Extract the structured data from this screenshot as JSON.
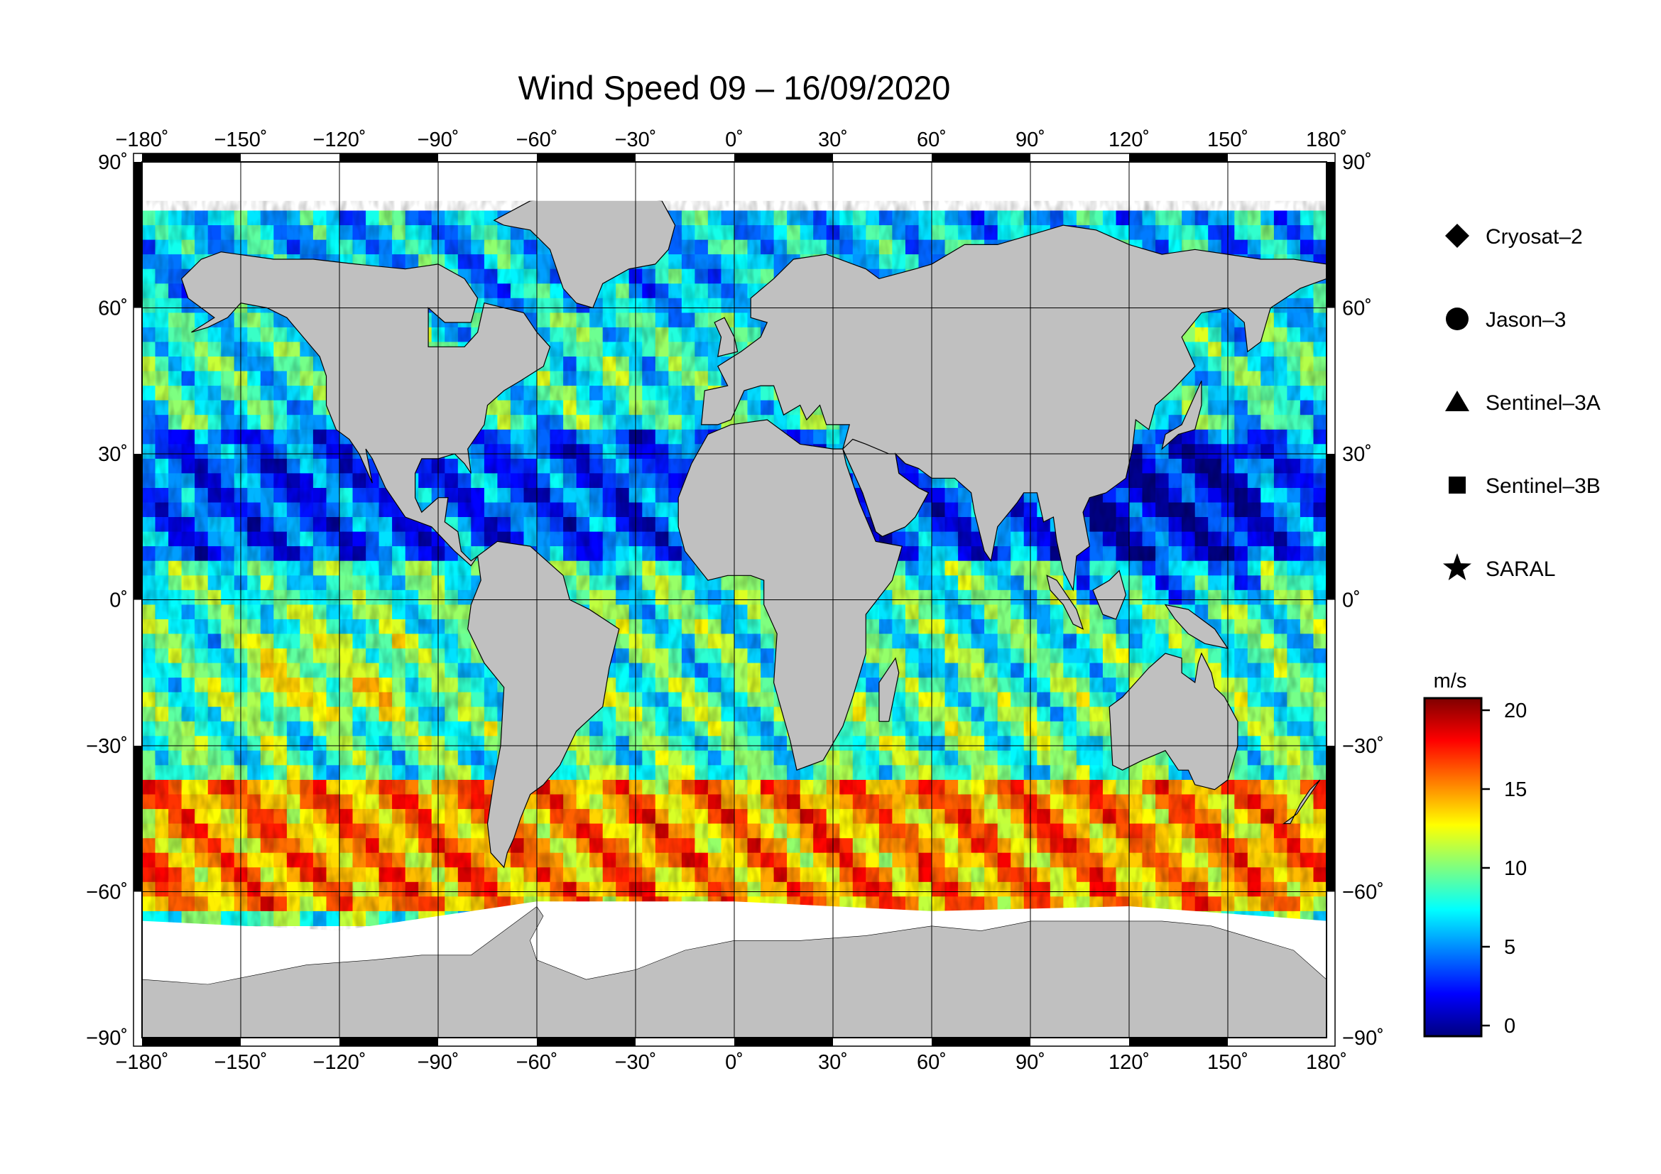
{
  "map": {
    "title": "Wind Speed 09 – 16/09/2020",
    "projection": "equirectangular",
    "lon_range": [
      -180,
      180
    ],
    "lat_range": [
      -90,
      90
    ],
    "lon_ticks": [
      -180,
      -150,
      -120,
      -90,
      -60,
      -30,
      0,
      30,
      60,
      90,
      120,
      150,
      180
    ],
    "lat_ticks": [
      90,
      60,
      30,
      0,
      -30,
      -60,
      -90
    ],
    "lon_tick_labels": [
      "−180˚",
      "−150˚",
      "−120˚",
      "−90˚",
      "−60˚",
      "−30˚",
      "0˚",
      "30˚",
      "60˚",
      "90˚",
      "120˚",
      "150˚",
      "180˚"
    ],
    "lat_tick_labels": [
      "90˚",
      "60˚",
      "30˚",
      "0˚",
      "−30˚",
      "−60˚",
      "−90˚"
    ],
    "grid": true,
    "land_color": "#c0c0c0",
    "ice_color": "#ffffff"
  },
  "legend": {
    "position": "right",
    "items": [
      {
        "label": "Cryosat–2",
        "marker": "diamond"
      },
      {
        "label": "Jason–3",
        "marker": "circle"
      },
      {
        "label": "Sentinel–3A",
        "marker": "triangle"
      },
      {
        "label": "Sentinel–3B",
        "marker": "square"
      },
      {
        "label": "SARAL",
        "marker": "star"
      }
    ]
  },
  "colorbar": {
    "unit": "m/s",
    "range": [
      0,
      20
    ],
    "ticks": [
      20,
      15,
      10,
      5,
      0
    ],
    "tick_labels": [
      "20",
      "15",
      "10",
      "5",
      "0"
    ],
    "colors": [
      "#00007f",
      "#0000ff",
      "#007fff",
      "#00ffff",
      "#7fff7f",
      "#ffff00",
      "#ff7f00",
      "#ff0000",
      "#7f0000"
    ]
  }
}
